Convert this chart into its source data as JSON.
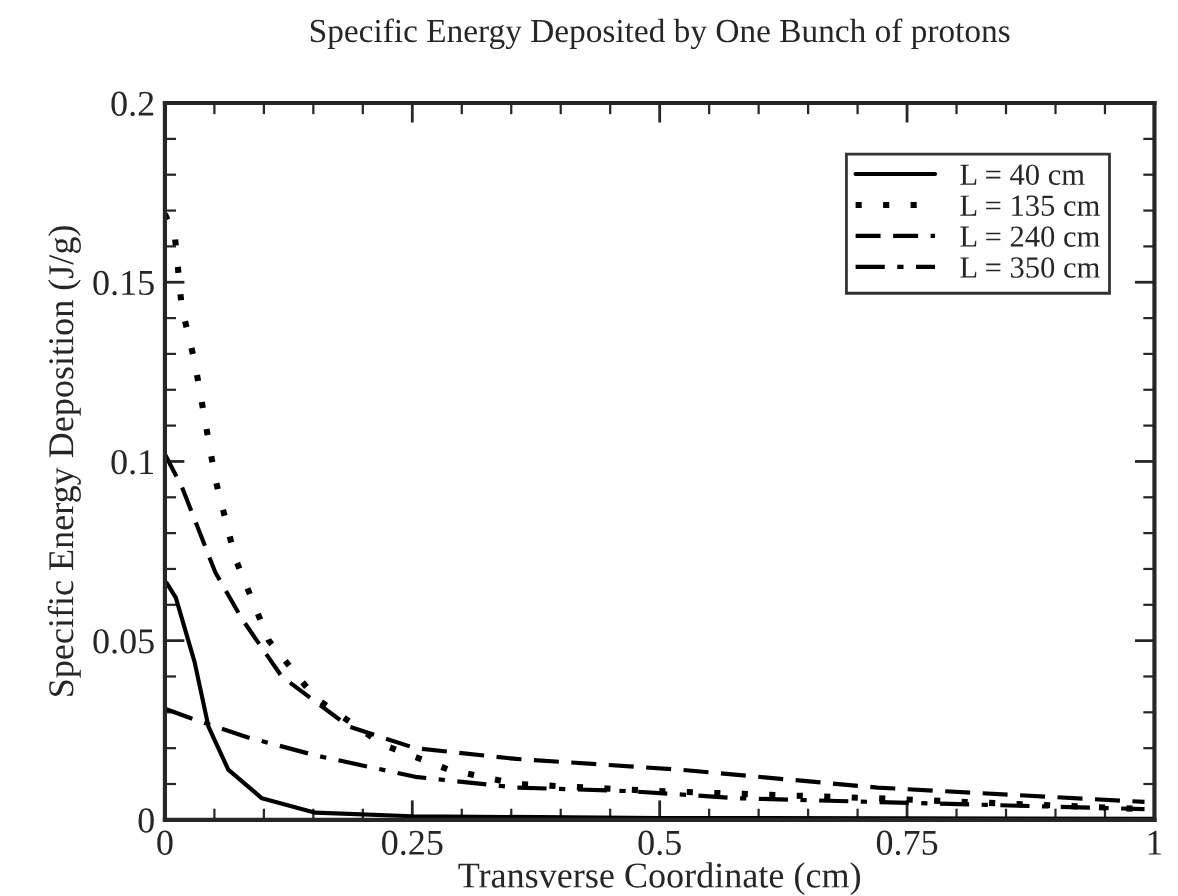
{
  "chart_data": {
    "type": "line",
    "title": "Specific Energy Deposited by One Bunch of protons",
    "xlabel": "Transverse Coordinate (cm)",
    "ylabel": "Specific Energy Deposition (J/g)",
    "xlim": [
      0,
      1
    ],
    "ylim": [
      0,
      0.2
    ],
    "xticks": [
      0,
      0.25,
      0.5,
      0.75,
      1
    ],
    "yticks": [
      0,
      0.05,
      0.1,
      0.15,
      0.2
    ],
    "grid": false,
    "legend": "top right",
    "marker": "none",
    "series": [
      {
        "name": "L = 40 cm",
        "color": "#000000",
        "line_style": "solid",
        "x": [
          0.002,
          0.011,
          0.03,
          0.044,
          0.064,
          0.098,
          0.152,
          0.25,
          0.5,
          1.0
        ],
        "values": [
          0.066,
          0.062,
          0.044,
          0.026,
          0.014,
          0.006,
          0.002,
          0.001,
          0.0005,
          0.0003
        ]
      },
      {
        "name": "L = 135 cm",
        "color": "#000000",
        "line_style": "dotted",
        "x": [
          0.0,
          0.01,
          0.017,
          0.03,
          0.051,
          0.071,
          0.105,
          0.152,
          0.22,
          0.287,
          0.355,
          0.5,
          0.72,
          0.99
        ],
        "values": [
          0.169,
          0.163,
          0.143,
          0.128,
          0.095,
          0.073,
          0.05,
          0.034,
          0.021,
          0.014,
          0.01,
          0.008,
          0.006,
          0.003
        ]
      },
      {
        "name": "L = 240 cm",
        "color": "#000000",
        "line_style": "dashed",
        "x": [
          0.0,
          0.017,
          0.051,
          0.078,
          0.118,
          0.186,
          0.253,
          0.355,
          0.52,
          0.72,
          0.99
        ],
        "values": [
          0.102,
          0.093,
          0.069,
          0.056,
          0.04,
          0.026,
          0.02,
          0.017,
          0.014,
          0.009,
          0.005
        ]
      },
      {
        "name": "L = 350 cm",
        "color": "#000000",
        "line_style": "dashdot",
        "x": [
          0.0,
          0.03,
          0.084,
          0.152,
          0.253,
          0.355,
          0.47,
          0.58,
          0.99
        ],
        "values": [
          0.031,
          0.028,
          0.023,
          0.018,
          0.012,
          0.009,
          0.008,
          0.006,
          0.003
        ]
      }
    ]
  }
}
